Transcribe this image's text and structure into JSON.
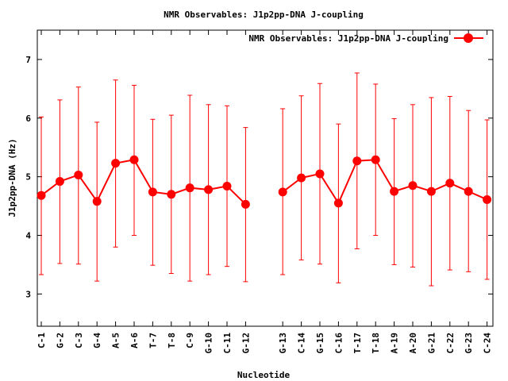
{
  "chart_data": {
    "type": "line",
    "title": "NMR Observables: J1p2pp-DNA J-coupling",
    "xlabel": "Nucleotide",
    "ylabel": "J1p2pp-DNA (Hz)",
    "ylim": [
      2.45,
      7.5
    ],
    "yticks": [
      3,
      4,
      5,
      6,
      7
    ],
    "grid": false,
    "legend_position": "top-right",
    "series_color": "#ff0000",
    "categories": [
      "C-1",
      "G-2",
      "C-3",
      "G-4",
      "A-5",
      "A-6",
      "T-7",
      "T-8",
      "C-9",
      "G-10",
      "C-11",
      "G-12",
      "",
      "G-13",
      "C-14",
      "G-15",
      "C-16",
      "T-17",
      "T-18",
      "A-19",
      "A-20",
      "G-21",
      "C-22",
      "G-23",
      "C-24"
    ],
    "series": [
      {
        "name": "NMR Observables: J1p2pp-DNA J-coupling",
        "values": [
          4.68,
          4.92,
          5.03,
          4.58,
          5.23,
          5.29,
          4.74,
          4.7,
          4.81,
          4.78,
          4.84,
          4.53,
          null,
          4.74,
          4.98,
          5.05,
          4.55,
          5.27,
          5.29,
          4.75,
          4.85,
          4.75,
          4.89,
          4.75,
          4.61
        ],
        "err_low": [
          3.33,
          3.52,
          3.51,
          3.22,
          3.8,
          4.0,
          3.49,
          3.35,
          3.22,
          3.33,
          3.47,
          3.21,
          null,
          3.33,
          3.58,
          3.51,
          3.19,
          3.77,
          4.0,
          3.5,
          3.46,
          3.14,
          3.41,
          3.38,
          3.25
        ],
        "err_high": [
          6.02,
          6.31,
          6.53,
          5.93,
          6.65,
          6.56,
          5.98,
          6.05,
          6.39,
          6.23,
          6.21,
          5.84,
          null,
          6.16,
          6.38,
          6.59,
          5.9,
          6.77,
          6.58,
          5.99,
          6.23,
          6.35,
          6.37,
          6.13,
          5.97
        ]
      }
    ]
  }
}
